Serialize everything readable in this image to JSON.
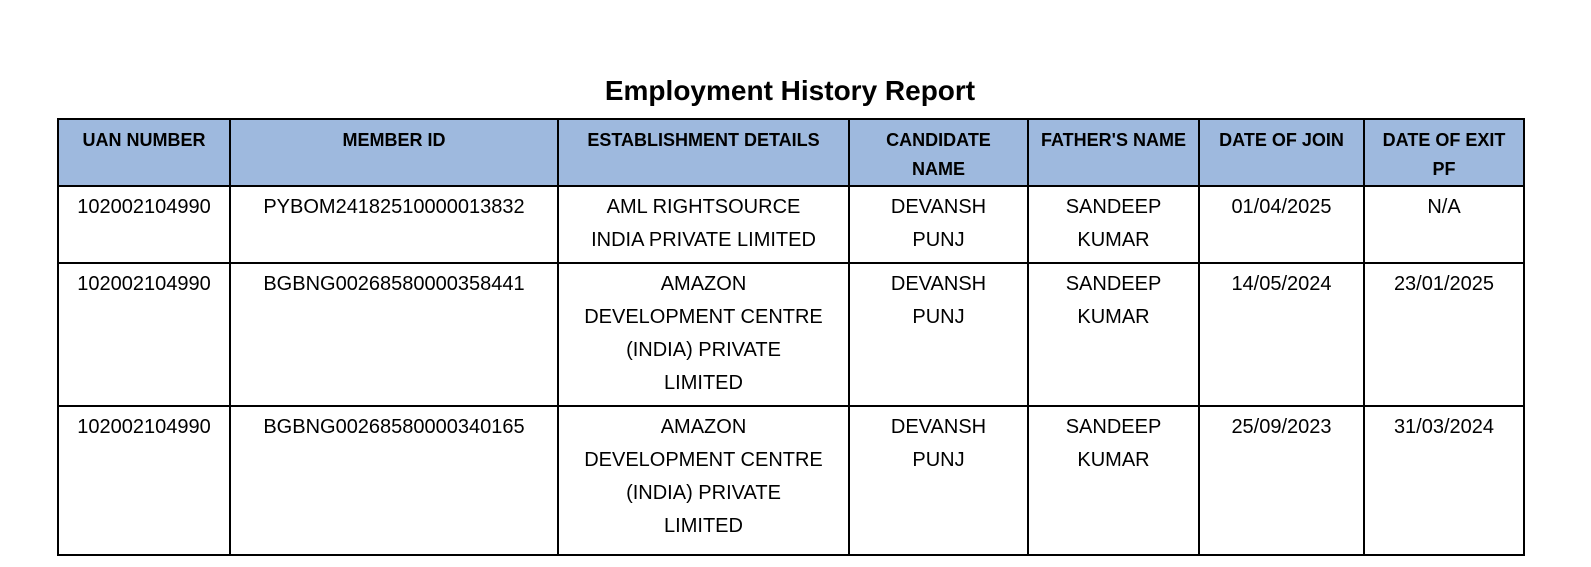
{
  "page": {
    "title": "Employment History Report"
  },
  "table": {
    "headers": [
      "UAN NUMBER",
      "MEMBER ID",
      "ESTABLISHMENT DETAILS",
      "CANDIDATE\nNAME",
      "FATHER'S NAME",
      "DATE OF JOIN",
      "DATE OF EXIT\nPF"
    ],
    "rows": [
      {
        "uan_number": "102002104990",
        "member_id": "PYBOM24182510000013832",
        "establishment_details": "AML RIGHTSOURCE\nINDIA PRIVATE LIMITED",
        "candidate_name": "DEVANSH\nPUNJ",
        "father_name": "SANDEEP\nKUMAR",
        "date_of_join": "01/04/2025",
        "date_of_exit_pf": "N/A"
      },
      {
        "uan_number": "102002104990",
        "member_id": "BGBNG00268580000358441",
        "establishment_details": "AMAZON\nDEVELOPMENT CENTRE\n(INDIA) PRIVATE\nLIMITED",
        "candidate_name": "DEVANSH\nPUNJ",
        "father_name": "SANDEEP\nKUMAR",
        "date_of_join": "14/05/2024",
        "date_of_exit_pf": "23/01/2025"
      },
      {
        "uan_number": "102002104990",
        "member_id": "BGBNG00268580000340165",
        "establishment_details": "AMAZON\nDEVELOPMENT CENTRE\n(INDIA) PRIVATE\nLIMITED",
        "candidate_name": "DEVANSH\nPUNJ",
        "father_name": "SANDEEP\nKUMAR",
        "date_of_join": "25/09/2023",
        "date_of_exit_pf": "31/03/2024"
      }
    ]
  },
  "colors": {
    "header_bg": "#9eb9de",
    "border": "#000000",
    "text": "#000000",
    "background": "#ffffff"
  }
}
